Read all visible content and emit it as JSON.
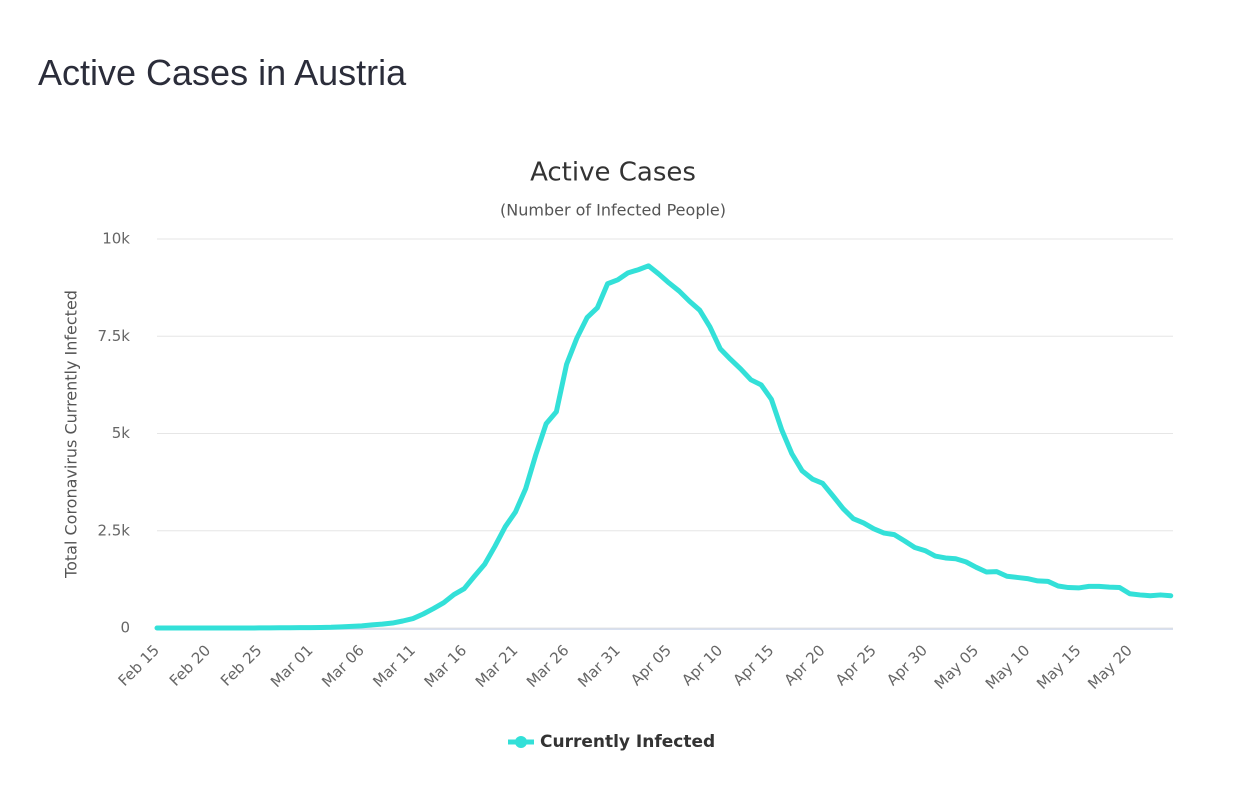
{
  "page_title": "Active Cases in Austria",
  "chart_data": {
    "type": "line",
    "title": "Active Cases",
    "subtitle": "(Number of Infected People)",
    "y_label": "Total Coronavirus Currently Infected",
    "categories": [
      "Feb 15",
      null,
      null,
      null,
      null,
      "Feb 20",
      null,
      null,
      null,
      null,
      "Feb 25",
      null,
      null,
      null,
      null,
      "Mar 01",
      null,
      null,
      null,
      null,
      "Mar 06",
      null,
      null,
      null,
      null,
      "Mar 11",
      null,
      null,
      null,
      null,
      "Mar 16",
      null,
      null,
      null,
      null,
      "Mar 21",
      null,
      null,
      null,
      null,
      "Mar 26",
      null,
      null,
      null,
      null,
      "Mar 31",
      null,
      null,
      null,
      null,
      "Apr 05",
      null,
      null,
      null,
      null,
      "Apr 10",
      null,
      null,
      null,
      null,
      "Apr 15",
      null,
      null,
      null,
      null,
      "Apr 20",
      null,
      null,
      null,
      null,
      "Apr 25",
      null,
      null,
      null,
      null,
      "Apr 30",
      null,
      null,
      null,
      null,
      "May 05",
      null,
      null,
      null,
      null,
      "May 10",
      null,
      null,
      null,
      null,
      "May 15",
      null,
      null,
      null,
      null,
      "May 20",
      null,
      null,
      null,
      null
    ],
    "series": [
      {
        "name": "Currently Infected",
        "color": "#33e0d8",
        "values": [
          0,
          0,
          0,
          0,
          0,
          0,
          0,
          0,
          0,
          0,
          2,
          2,
          5,
          7,
          9,
          10,
          14,
          18,
          29,
          41,
          55,
          79,
          99,
          128,
          180,
          243,
          360,
          500,
          650,
          860,
          1010,
          1330,
          1640,
          2100,
          2600,
          2980,
          3580,
          4460,
          5250,
          5560,
          6780,
          7450,
          7980,
          8230,
          8850,
          8950,
          9130,
          9210,
          9310,
          9100,
          8870,
          8660,
          8400,
          8170,
          7740,
          7180,
          6910,
          6660,
          6380,
          6250,
          5880,
          5100,
          4480,
          4040,
          3830,
          3720,
          3400,
          3070,
          2810,
          2700,
          2550,
          2440,
          2400,
          2240,
          2070,
          1990,
          1850,
          1800,
          1780,
          1700,
          1560,
          1440,
          1450,
          1330,
          1300,
          1270,
          1210,
          1200,
          1080,
          1040,
          1030,
          1070,
          1070,
          1050,
          1040,
          880,
          850,
          830,
          850,
          830
        ]
      }
    ],
    "ylim": [
      0,
      10000
    ],
    "yticks": [
      0,
      {
        "value": 2500,
        "label": "2.5k"
      },
      {
        "value": 5000,
        "label": "5k"
      },
      {
        "value": 7500,
        "label": "7.5k"
      },
      {
        "value": 10000,
        "label": "10k"
      }
    ],
    "grid": true
  }
}
